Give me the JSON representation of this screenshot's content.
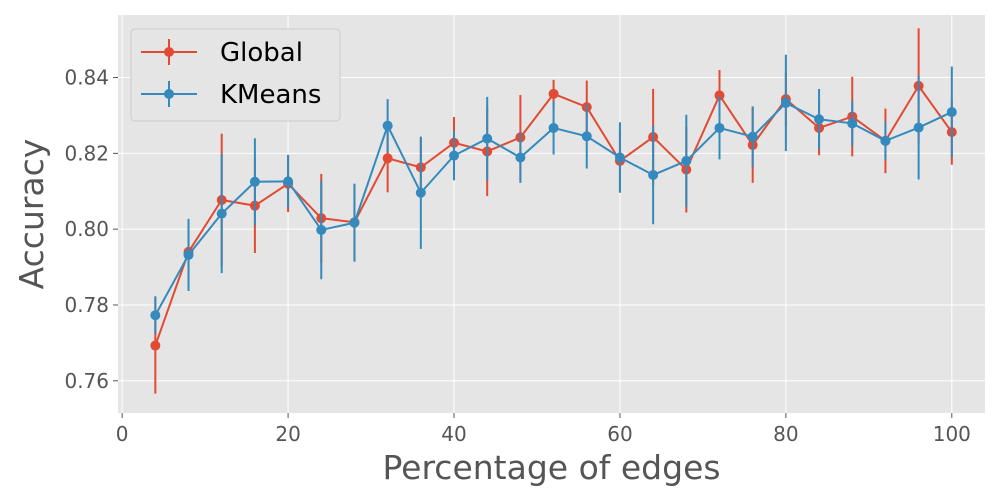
{
  "chart_data": {
    "type": "line",
    "xlabel": "Percentage of edges",
    "ylabel": "Accuracy",
    "xlim": [
      -0.5,
      104
    ],
    "ylim": [
      0.7515,
      0.8565
    ],
    "xticks": [
      "0",
      "20",
      "40",
      "60",
      "80",
      "100"
    ],
    "yticks": [
      "0.76",
      "0.78",
      "0.80",
      "0.82",
      "0.84"
    ],
    "grid": true,
    "legend_position": "top-left",
    "x": [
      4,
      8,
      12,
      16,
      20,
      24,
      28,
      32,
      36,
      40,
      44,
      48,
      52,
      56,
      60,
      64,
      68,
      72,
      76,
      80,
      84,
      88,
      92,
      96,
      100
    ],
    "series": [
      {
        "name": "Global",
        "color": "#E24A33",
        "values": [
          0.7693,
          0.794,
          0.8077,
          0.8062,
          0.812,
          0.8029,
          0.8018,
          0.8187,
          0.8163,
          0.8228,
          0.8205,
          0.8242,
          0.8357,
          0.8322,
          0.818,
          0.8243,
          0.8157,
          0.8353,
          0.8222,
          0.8343,
          0.8267,
          0.8297,
          0.8233,
          0.8378,
          0.8256
        ],
        "errors": [
          0.0127,
          0.008,
          0.0175,
          0.0125,
          0.0075,
          0.0117,
          0.01,
          0.009,
          0.008,
          0.0068,
          0.0118,
          0.0112,
          0.0037,
          0.007,
          0.008,
          0.0127,
          0.0113,
          0.0067,
          0.01,
          0.007,
          0.0072,
          0.0105,
          0.0085,
          0.0152,
          0.0086
        ]
      },
      {
        "name": "KMeans",
        "color": "#348ABD",
        "values": [
          0.7773,
          0.7932,
          0.8041,
          0.8125,
          0.8126,
          0.7998,
          0.8017,
          0.8273,
          0.8096,
          0.8194,
          0.8239,
          0.8189,
          0.8267,
          0.8245,
          0.8189,
          0.8143,
          0.818,
          0.8267,
          0.8244,
          0.8333,
          0.829,
          0.8279,
          0.8233,
          0.8268,
          0.8309
        ],
        "errors": [
          0.005,
          0.0095,
          0.0157,
          0.0115,
          0.007,
          0.013,
          0.0103,
          0.007,
          0.0148,
          0.0065,
          0.011,
          0.0067,
          0.007,
          0.0085,
          0.0093,
          0.013,
          0.0122,
          0.0083,
          0.008,
          0.0127,
          0.008,
          0.006,
          0.005,
          0.0137,
          0.012
        ]
      }
    ]
  }
}
